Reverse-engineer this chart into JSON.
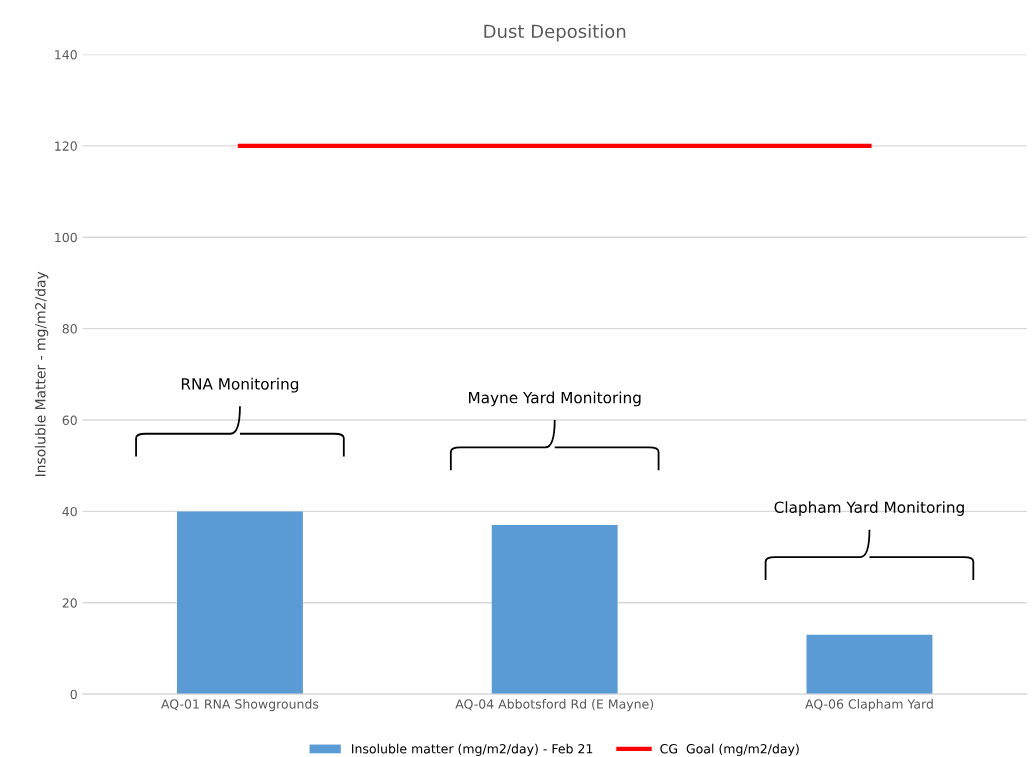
{
  "chart_data": {
    "type": "bar",
    "title": "Dust Deposition",
    "ylabel": "Insoluble Matter - mg/m2/day",
    "categories": [
      "AQ-01 RNA Showgrounds",
      "AQ-04 Abbotsford Rd (E Mayne)",
      "AQ-06 Clapham Yard"
    ],
    "series": [
      {
        "name": "Insoluble matter (mg/m2/day) - Feb 21",
        "color": "#5b9bd5",
        "values": [
          40,
          37,
          13
        ]
      },
      {
        "name": "CG  Goal (mg/m2/day)",
        "type": "line",
        "color": "#ff0000",
        "values": [
          120,
          120,
          120
        ]
      }
    ],
    "ylim": [
      0,
      140
    ],
    "yticks": [
      0,
      20,
      40,
      60,
      80,
      100,
      120,
      140
    ],
    "grid": "y",
    "legend": "bottom",
    "annotations": [
      "RNA Monitoring",
      "Mayne Yard Monitoring",
      "Clapham Yard Monitoring"
    ]
  }
}
